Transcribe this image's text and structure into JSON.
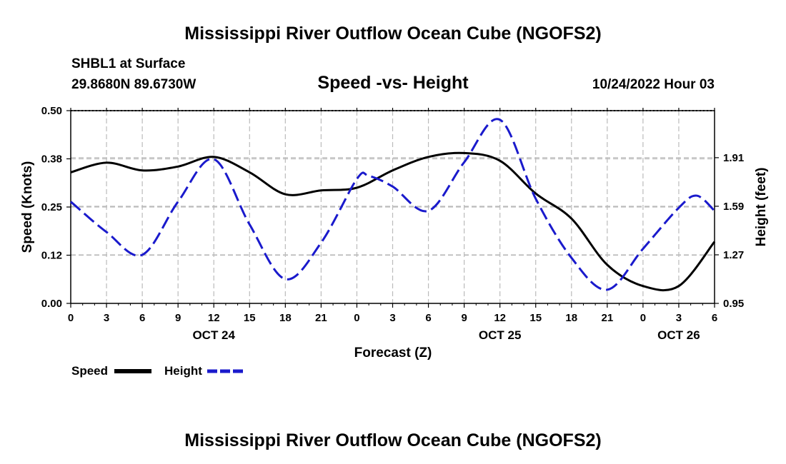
{
  "chart_data": {
    "type": "line",
    "title": "Mississippi River Outflow Ocean Cube (NGOFS2)",
    "station": "SHBL1 at Surface",
    "location": "29.8680N  89.6730W",
    "subtitle": "Speed -vs- Height",
    "datetime": "10/24/2022 Hour 03",
    "xlabel": "Forecast (Z)",
    "ylabel_left": "Speed (Knots)",
    "ylabel_right": "Height (feet)",
    "xlim": [
      0,
      54
    ],
    "ylim_left": [
      0,
      0.5
    ],
    "ylim_right": [
      0.95,
      2.22
    ],
    "x_ticks": [
      {
        "x": 0,
        "label": "0"
      },
      {
        "x": 3,
        "label": "3"
      },
      {
        "x": 6,
        "label": "6"
      },
      {
        "x": 9,
        "label": "9"
      },
      {
        "x": 12,
        "label": "12"
      },
      {
        "x": 15,
        "label": "15"
      },
      {
        "x": 18,
        "label": "18"
      },
      {
        "x": 21,
        "label": "21"
      },
      {
        "x": 24,
        "label": "0"
      },
      {
        "x": 27,
        "label": "3"
      },
      {
        "x": 30,
        "label": "6"
      },
      {
        "x": 33,
        "label": "9"
      },
      {
        "x": 36,
        "label": "12"
      },
      {
        "x": 39,
        "label": "15"
      },
      {
        "x": 42,
        "label": "18"
      },
      {
        "x": 45,
        "label": "21"
      },
      {
        "x": 48,
        "label": "0"
      },
      {
        "x": 51,
        "label": "3"
      },
      {
        "x": 54,
        "label": "6"
      }
    ],
    "date_labels": [
      {
        "x": 12,
        "label": "OCT 24"
      },
      {
        "x": 36,
        "label": "OCT 25"
      },
      {
        "x": 51,
        "label": "OCT 26"
      }
    ],
    "y_ticks_left": [
      {
        "v": 0.0,
        "label": "0.00"
      },
      {
        "v": 0.125,
        "label": "0.12"
      },
      {
        "v": 0.25,
        "label": "0.25"
      },
      {
        "v": 0.375,
        "label": "0.38"
      },
      {
        "v": 0.5,
        "label": "0.50"
      }
    ],
    "y_ticks_right": [
      {
        "v": 0.95,
        "label": "0.95"
      },
      {
        "v": 1.27,
        "label": "1.27"
      },
      {
        "v": 1.59,
        "label": "1.59"
      },
      {
        "v": 1.91,
        "label": "1.91"
      }
    ],
    "series": [
      {
        "name": "Speed",
        "axis": "left",
        "color": "#000000",
        "style": "solid",
        "x": [
          0,
          3,
          6,
          9,
          12,
          15,
          18,
          21,
          24,
          27,
          30,
          33,
          36,
          39,
          42,
          45,
          48,
          51,
          54
        ],
        "values": [
          0.34,
          0.365,
          0.345,
          0.355,
          0.38,
          0.34,
          0.283,
          0.293,
          0.3,
          0.345,
          0.38,
          0.39,
          0.37,
          0.285,
          0.22,
          0.1,
          0.045,
          0.045,
          0.16
        ]
      },
      {
        "name": "Height",
        "axis": "right",
        "color": "#1a1acc",
        "style": "dashed",
        "x": [
          0,
          3,
          6,
          9,
          12,
          15,
          18,
          21,
          24,
          25,
          27,
          30,
          33,
          36,
          39,
          42,
          45,
          48,
          51,
          52.5,
          54
        ],
        "values": [
          1.62,
          1.42,
          1.27,
          1.62,
          1.9,
          1.47,
          1.11,
          1.35,
          1.77,
          1.79,
          1.72,
          1.56,
          1.88,
          2.16,
          1.64,
          1.25,
          1.04,
          1.31,
          1.58,
          1.66,
          1.56
        ]
      }
    ],
    "legend": [
      {
        "label": "Speed",
        "color": "#000000",
        "style": "solid"
      },
      {
        "label": "Height",
        "color": "#1a1acc",
        "style": "dashed"
      }
    ],
    "footer_title": "Mississippi River Outflow Ocean Cube (NGOFS2)"
  }
}
